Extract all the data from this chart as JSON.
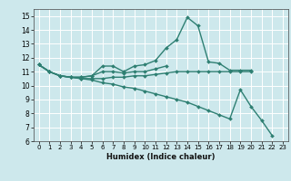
{
  "xlabel": "Humidex (Indice chaleur)",
  "xlim": [
    -0.5,
    23.5
  ],
  "ylim": [
    6,
    15.5
  ],
  "yticks": [
    6,
    7,
    8,
    9,
    10,
    11,
    12,
    13,
    14,
    15
  ],
  "xticks": [
    0,
    1,
    2,
    3,
    4,
    5,
    6,
    7,
    8,
    9,
    10,
    11,
    12,
    13,
    14,
    15,
    16,
    17,
    18,
    19,
    20,
    21,
    22,
    23
  ],
  "bg_color": "#cde8ec",
  "grid_color": "#b0d8de",
  "line_color": "#2e7f72",
  "lines": [
    {
      "x": [
        0,
        1,
        2,
        3,
        4,
        5,
        6,
        7,
        8,
        9,
        10,
        11,
        12,
        13,
        14,
        15,
        16,
        17,
        18,
        19,
        20
      ],
      "y": [
        11.5,
        11.0,
        10.7,
        10.6,
        10.6,
        10.7,
        11.4,
        11.4,
        11.0,
        11.4,
        11.5,
        11.8,
        12.7,
        13.3,
        14.9,
        14.3,
        11.7,
        11.6,
        11.1,
        11.1,
        11.1
      ],
      "marker": "D",
      "markersize": 2.0,
      "linewidth": 1.0
    },
    {
      "x": [
        0,
        1,
        2,
        3,
        4,
        5,
        6,
        7,
        8,
        9,
        10,
        11,
        12
      ],
      "y": [
        11.5,
        11.0,
        10.7,
        10.6,
        10.6,
        10.7,
        11.0,
        11.0,
        10.9,
        11.0,
        11.0,
        11.2,
        11.4
      ],
      "marker": "D",
      "markersize": 2.0,
      "linewidth": 1.0
    },
    {
      "x": [
        0,
        1,
        2,
        3,
        4,
        5,
        6,
        7,
        8,
        9,
        10,
        11,
        12,
        13,
        14,
        15,
        16,
        17,
        18,
        19,
        20
      ],
      "y": [
        11.5,
        11.0,
        10.7,
        10.6,
        10.5,
        10.5,
        10.5,
        10.6,
        10.6,
        10.7,
        10.7,
        10.8,
        10.9,
        11.0,
        11.0,
        11.0,
        11.0,
        11.0,
        11.0,
        11.0,
        11.0
      ],
      "marker": "D",
      "markersize": 2.0,
      "linewidth": 1.0
    },
    {
      "x": [
        0,
        1,
        2,
        3,
        4,
        5,
        6,
        7,
        8,
        9,
        10,
        11,
        12,
        13,
        14,
        15,
        16,
        17,
        18,
        19,
        20,
        21,
        22
      ],
      "y": [
        11.5,
        11.0,
        10.7,
        10.6,
        10.5,
        10.4,
        10.2,
        10.1,
        9.9,
        9.8,
        9.6,
        9.4,
        9.2,
        9.0,
        8.8,
        8.5,
        8.2,
        7.9,
        7.6,
        9.7,
        8.5,
        7.5,
        6.4
      ],
      "marker": "D",
      "markersize": 2.0,
      "linewidth": 1.0
    }
  ]
}
